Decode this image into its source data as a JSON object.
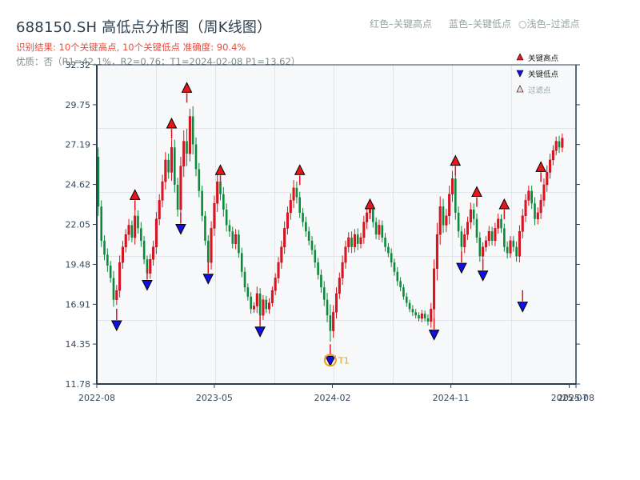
{
  "header": {
    "title": "688150.SH 高低点分析图（周K线图）",
    "result_line": "识别结果: 10个关键高点, 10个关键低点   准确度: 90.4%",
    "quality_line": "优质：否（R1=42.1%，R2=0.76；T1=2024-02-08 P1=13.62）",
    "legend_red": "红色–关键高点",
    "legend_blue": "蓝色–关键低点",
    "legend_light": "○浅色–过滤点"
  },
  "colors": {
    "up": "#e0141e",
    "down": "#0a8a3a",
    "high_marker": "#e8161c",
    "low_marker": "#1010e6",
    "filtered_marker": "#f8d0d0",
    "t1_ring": "#f39c12",
    "axis": "#2c3e50",
    "grid": "#e1e4e8",
    "plot_bg": "#f6f8fa"
  },
  "chart_data": {
    "type": "candlestick",
    "title": "688150.SH 高低点分析图（周K线图）",
    "xlabel": "",
    "ylabel": "",
    "ylim": [
      11.78,
      32.32
    ],
    "y_ticks": [
      "11.78",
      "14.35",
      "16.91",
      "19.48",
      "22.05",
      "24.62",
      "27.19",
      "29.75",
      "32.32"
    ],
    "x_ticks": [
      {
        "label": "2022-08",
        "week": 0
      },
      {
        "label": "2023-05",
        "week": 38.5
      },
      {
        "label": "2024-02",
        "week": 77.2
      },
      {
        "label": "2024-11",
        "week": 116
      },
      {
        "label": "2025-07",
        "week": 154.8
      },
      {
        "label": "2025-08",
        "week": 157
      }
    ],
    "grid": true,
    "legend_position": "upper right",
    "legend": [
      {
        "label": "关键高点",
        "marker": "triangle-up",
        "color": "#e8161c"
      },
      {
        "label": "关键低点",
        "marker": "triangle-down",
        "color": "#1010e6"
      },
      {
        "label": "过滤点",
        "marker": "triangle-up-outline",
        "color": "#f8d0d0"
      }
    ],
    "weeks": 157,
    "first_open": 26.4,
    "closes": [
      23.2,
      21.0,
      20.1,
      19.4,
      18.6,
      17.2,
      17.8,
      19.6,
      20.6,
      21.4,
      22.0,
      21.2,
      22.6,
      21.8,
      21.0,
      19.8,
      18.9,
      19.8,
      20.6,
      22.4,
      23.6,
      24.8,
      26.2,
      25.4,
      27.0,
      24.6,
      23.0,
      25.8,
      27.4,
      26.6,
      29.0,
      27.2,
      25.6,
      24.2,
      22.6,
      21.0,
      19.6,
      21.8,
      23.4,
      24.8,
      24.0,
      23.0,
      22.0,
      21.6,
      20.8,
      21.4,
      20.2,
      19.0,
      18.0,
      17.4,
      16.6,
      16.8,
      17.6,
      16.2,
      17.2,
      16.6,
      17.0,
      17.8,
      18.6,
      19.6,
      20.6,
      21.8,
      22.8,
      23.6,
      24.4,
      23.8,
      22.8,
      22.2,
      21.6,
      21.0,
      20.4,
      19.6,
      18.8,
      18.0,
      17.2,
      16.2,
      15.2,
      16.4,
      17.6,
      18.6,
      19.6,
      20.6,
      21.2,
      20.6,
      21.4,
      20.8,
      21.2,
      22.2,
      22.8,
      23.0,
      22.2,
      21.4,
      22.0,
      21.2,
      20.6,
      20.2,
      19.6,
      19.0,
      18.4,
      18.0,
      17.4,
      17.0,
      16.6,
      16.4,
      16.2,
      16.0,
      16.3,
      16.0,
      15.8,
      16.6,
      19.2,
      21.4,
      23.2,
      22.0,
      22.6,
      24.0,
      25.0,
      22.8,
      21.6,
      20.6,
      21.4,
      22.2,
      23.0,
      22.4,
      21.2,
      20.0,
      20.6,
      21.0,
      21.6,
      21.0,
      21.8,
      22.4,
      21.8,
      20.6,
      20.2,
      21.0,
      20.6,
      20.0,
      21.6,
      22.6,
      23.6,
      24.2,
      23.4,
      22.4,
      22.8,
      23.6,
      24.6,
      25.4,
      26.2,
      26.8,
      27.4,
      27.0,
      27.6
    ],
    "wicks": [
      1.2,
      0.8,
      0.7,
      0.8,
      0.6,
      0.9,
      0.7,
      0.9,
      0.8,
      0.7,
      0.8,
      0.6,
      0.9,
      0.7,
      0.8,
      0.6,
      0.5,
      0.7,
      0.8,
      0.9,
      0.8,
      0.9,
      1.0,
      0.8,
      1.1,
      1.0,
      0.9,
      1.2,
      1.4,
      1.6,
      1.0,
      1.3,
      0.9,
      0.8,
      0.7,
      0.6,
      0.7,
      0.9,
      1.0,
      1.1,
      0.8,
      0.9,
      0.8,
      0.7,
      0.6,
      0.7,
      0.6,
      0.7,
      0.6,
      0.5,
      0.6,
      0.5,
      0.9,
      0.7,
      0.6,
      0.5,
      0.6,
      0.5,
      0.6,
      0.7,
      0.8,
      0.9,
      0.8,
      0.9,
      1.0,
      0.8,
      0.7,
      0.6,
      0.7,
      0.6,
      0.6,
      0.7,
      0.6,
      0.7,
      0.8,
      0.9,
      1.4,
      0.9,
      0.8,
      0.7,
      0.9,
      0.8,
      0.7,
      0.8,
      0.7,
      0.8,
      0.6,
      0.8,
      0.9,
      0.8,
      0.7,
      0.6,
      0.7,
      0.6,
      0.6,
      0.5,
      0.6,
      0.5,
      0.6,
      0.5,
      0.4,
      0.5,
      0.4,
      0.5,
      0.4,
      0.4,
      0.5,
      0.4,
      0.5,
      0.8,
      1.2,
      1.5,
      1.3,
      1.0,
      0.9,
      1.1,
      1.0,
      0.9,
      0.8,
      0.7,
      0.8,
      0.7,
      0.9,
      0.8,
      0.7,
      0.7,
      0.6,
      0.6,
      0.7,
      0.6,
      0.7,
      0.7,
      0.6,
      0.6,
      0.7,
      0.6,
      0.6,
      0.7,
      0.8,
      0.9,
      0.8,
      0.7,
      0.7,
      0.8,
      0.7,
      0.8,
      0.8,
      0.9,
      0.8,
      0.7,
      0.6,
      0.7,
      0.6
    ],
    "key_highs": [
      {
        "week": 12,
        "price": 23.6
      },
      {
        "week": 24,
        "price": 28.2
      },
      {
        "week": 29,
        "price": 30.5
      },
      {
        "week": 40,
        "price": 25.2
      },
      {
        "week": 66,
        "price": 25.2
      },
      {
        "week": 89,
        "price": 23.0
      },
      {
        "week": 117,
        "price": 25.8
      },
      {
        "week": 124,
        "price": 23.8
      },
      {
        "week": 133,
        "price": 23.0
      },
      {
        "week": 145,
        "price": 25.4
      }
    ],
    "key_lows": [
      {
        "week": 6,
        "price": 15.9
      },
      {
        "week": 16,
        "price": 18.5
      },
      {
        "week": 27,
        "price": 22.1
      },
      {
        "week": 36,
        "price": 18.9
      },
      {
        "week": 53,
        "price": 15.5
      },
      {
        "week": 76,
        "price": 13.62,
        "label": "T1"
      },
      {
        "week": 110,
        "price": 15.3
      },
      {
        "week": 119,
        "price": 19.6
      },
      {
        "week": 126,
        "price": 19.1
      },
      {
        "week": 139,
        "price": 17.1
      }
    ],
    "annotations": [
      {
        "text": "T1",
        "week": 76,
        "price": 13.62,
        "date": "2024-02-08"
      }
    ]
  }
}
